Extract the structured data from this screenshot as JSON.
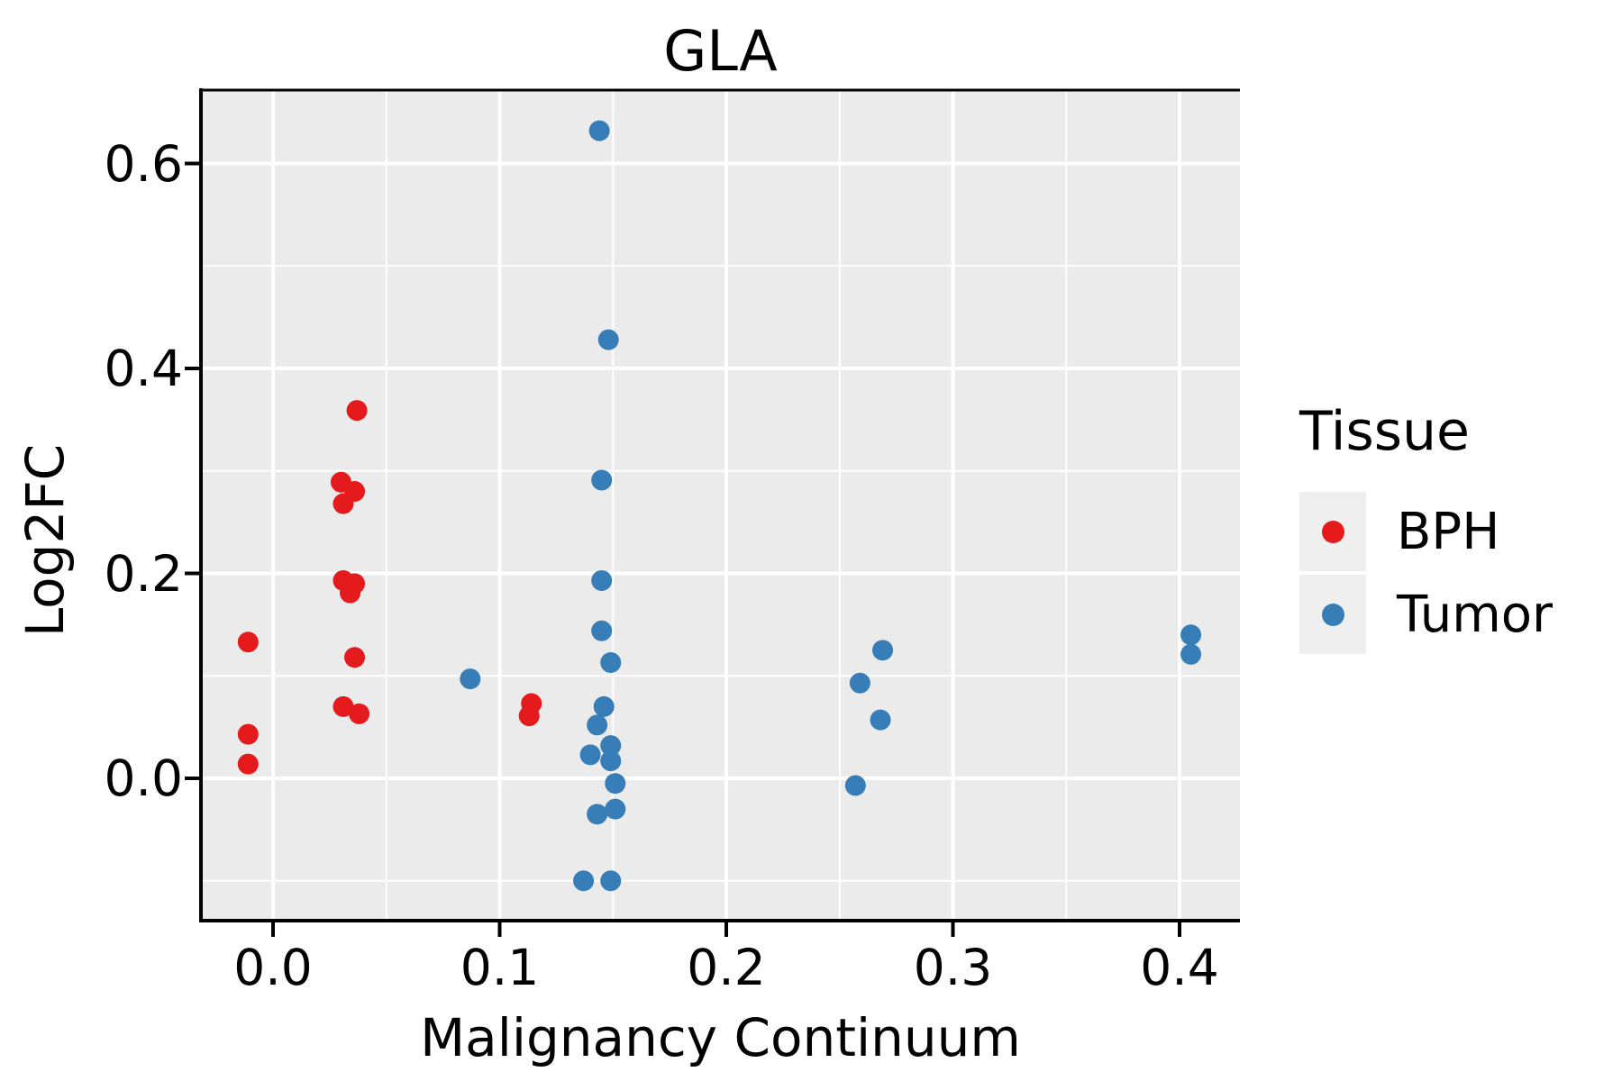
{
  "chart_data": {
    "type": "scatter",
    "title": "GLA",
    "xlabel": "Malignancy Continuum",
    "ylabel": "Log2FC",
    "xlim": [
      -0.032,
      0.427
    ],
    "ylim": [
      -0.142,
      0.669
    ],
    "grid": "major+minor, white on gray panel",
    "x_ticks": {
      "values": [
        0.0,
        0.1,
        0.2,
        0.3,
        0.4
      ],
      "labels": [
        "0.0",
        "0.1",
        "0.2",
        "0.3",
        "0.4"
      ]
    },
    "y_ticks": {
      "values": [
        0.0,
        0.2,
        0.4,
        0.6
      ],
      "labels": [
        "0.0",
        "0.2",
        "0.4",
        "0.6"
      ]
    },
    "x_minor_gridlines": [
      0.05,
      0.15,
      0.25,
      0.35
    ],
    "y_minor_gridlines": [
      -0.1,
      0.1,
      0.3,
      0.5
    ],
    "legend": {
      "title": "Tissue",
      "position": "right"
    },
    "colors": {
      "panel_bg": "#EBEBEB",
      "gridline": "#FFFFFF",
      "axis": "#000000",
      "legend_key_bg": "#EFEFEF"
    },
    "series": [
      {
        "name": "BPH",
        "color": "#E41A1C",
        "points": [
          [
            -0.011,
            0.133
          ],
          [
            -0.011,
            0.043
          ],
          [
            -0.011,
            0.014
          ],
          [
            0.037,
            0.359
          ],
          [
            0.03,
            0.289
          ],
          [
            0.036,
            0.28
          ],
          [
            0.031,
            0.268
          ],
          [
            0.031,
            0.193
          ],
          [
            0.036,
            0.19
          ],
          [
            0.034,
            0.181
          ],
          [
            0.036,
            0.118
          ],
          [
            0.031,
            0.07
          ],
          [
            0.038,
            0.063
          ],
          [
            0.114,
            0.073
          ],
          [
            0.113,
            0.061
          ]
        ]
      },
      {
        "name": "Tumor",
        "color": "#377EB8",
        "points": [
          [
            0.087,
            0.097
          ],
          [
            0.144,
            0.632
          ],
          [
            0.148,
            0.428
          ],
          [
            0.145,
            0.291
          ],
          [
            0.145,
            0.193
          ],
          [
            0.145,
            0.144
          ],
          [
            0.149,
            0.113
          ],
          [
            0.146,
            0.07
          ],
          [
            0.143,
            0.052
          ],
          [
            0.149,
            0.032
          ],
          [
            0.14,
            0.023
          ],
          [
            0.149,
            0.017
          ],
          [
            0.151,
            -0.005
          ],
          [
            0.143,
            -0.035
          ],
          [
            0.151,
            -0.03
          ],
          [
            0.137,
            -0.1
          ],
          [
            0.149,
            -0.1
          ],
          [
            0.269,
            0.125
          ],
          [
            0.259,
            0.093
          ],
          [
            0.268,
            0.057
          ],
          [
            0.257,
            -0.007
          ],
          [
            0.405,
            0.14
          ],
          [
            0.405,
            0.121
          ]
        ]
      }
    ]
  }
}
